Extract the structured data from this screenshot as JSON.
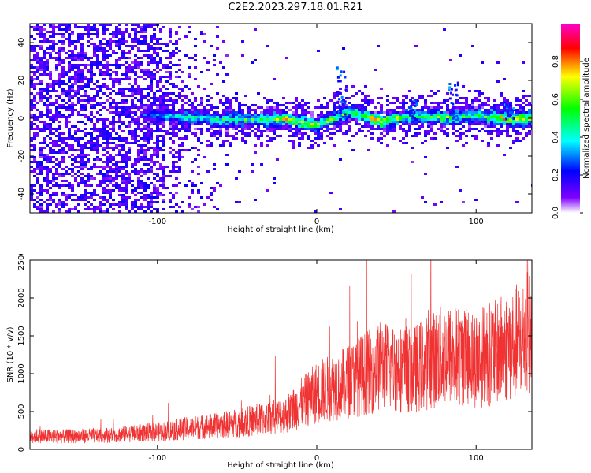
{
  "title": "C2E2.2023.297.18.01.R21",
  "chart_data": [
    {
      "type": "heatmap",
      "xlabel": "Height of straight line (km)",
      "ylabel": "Frequency (Hz)",
      "xlim": [
        -180,
        135
      ],
      "ylim": [
        -50,
        50
      ],
      "xticks": [
        -100,
        0,
        100
      ],
      "yticks": [
        -40,
        -20,
        0,
        20,
        40
      ],
      "colorbar": {
        "label": "Normalized spectral amplitude",
        "range": [
          0.0,
          1.0
        ],
        "ticks": [
          0.0,
          0.2,
          0.4,
          0.6,
          0.8
        ],
        "tick_labels": [
          "0.0",
          "0.2",
          "0.4",
          "0.6",
          "0.8"
        ],
        "colors": [
          "#ffffff",
          "#8000ff",
          "#0000ff",
          "#00ffff",
          "#00ff00",
          "#ffff00",
          "#ff0000",
          "#ff00ff"
        ]
      },
      "ridge": {
        "description_values": [
          {
            "x": -100,
            "f": 2,
            "amp": 0.35
          },
          {
            "x": -80,
            "f": 1,
            "amp": 0.5
          },
          {
            "x": -60,
            "f": 0,
            "amp": 0.55
          },
          {
            "x": -40,
            "f": 0,
            "amp": 0.6
          },
          {
            "x": -20,
            "f": 0,
            "amp": 0.75
          },
          {
            "x": 0,
            "f": -3,
            "amp": 0.65
          },
          {
            "x": 20,
            "f": 4,
            "amp": 0.6
          },
          {
            "x": 40,
            "f": -1,
            "amp": 0.85
          },
          {
            "x": 60,
            "f": 2,
            "amp": 0.55
          },
          {
            "x": 80,
            "f": 1,
            "amp": 0.65
          },
          {
            "x": 100,
            "f": 2,
            "amp": 0.6
          },
          {
            "x": 120,
            "f": 0,
            "amp": 0.85
          },
          {
            "x": 135,
            "f": 1,
            "amp": 0.8
          }
        ]
      }
    },
    {
      "type": "line",
      "xlabel": "Height of straight line (km)",
      "ylabel": "SNR (10 * v/v)",
      "xlim": [
        -180,
        135
      ],
      "ylim": [
        0,
        2500
      ],
      "xticks": [
        -100,
        0,
        100
      ],
      "yticks": [
        0,
        500,
        1000,
        1500,
        2000,
        2500
      ],
      "color": "#f03232",
      "x": [
        -180,
        -160,
        -140,
        -120,
        -100,
        -80,
        -60,
        -40,
        -20,
        0,
        20,
        40,
        60,
        80,
        100,
        120,
        135
      ],
      "values": [
        180,
        170,
        180,
        200,
        230,
        280,
        320,
        380,
        450,
        750,
        900,
        1100,
        1050,
        1250,
        1200,
        1350,
        1550
      ]
    }
  ]
}
